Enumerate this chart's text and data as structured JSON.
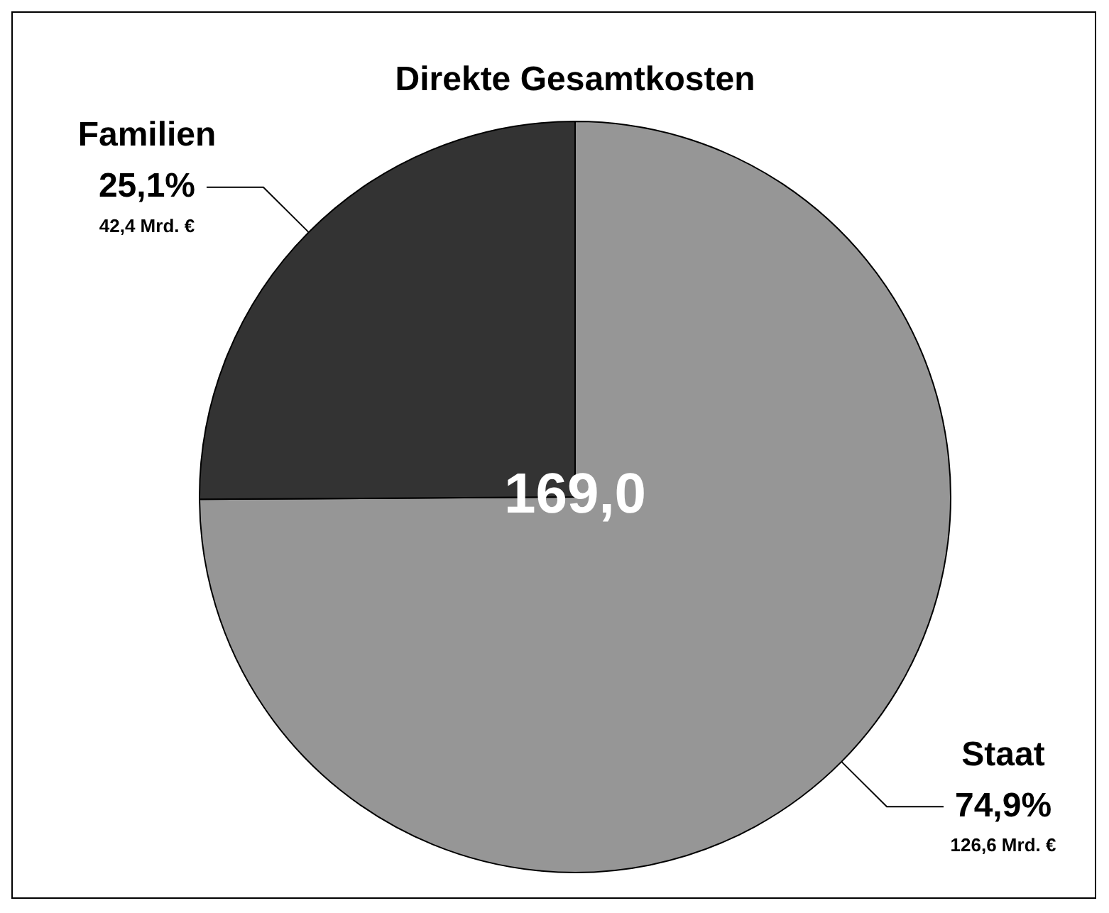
{
  "chart_data": {
    "type": "pie",
    "title": "Direkte Gesamtkosten",
    "categories": [
      "Staat",
      "Familien"
    ],
    "values": [
      74.9,
      25.1
    ],
    "colors": [
      "#969696",
      "#333333"
    ],
    "value_labels": [
      "74,9%",
      "25,1%"
    ],
    "annotations": [
      "169,0",
      {
        "text": "126,6 Mrd. €",
        "x": "Staat"
      },
      {
        "text": "42,4 Mrd. €",
        "x": "Familien"
      }
    ],
    "legend": false
  }
}
